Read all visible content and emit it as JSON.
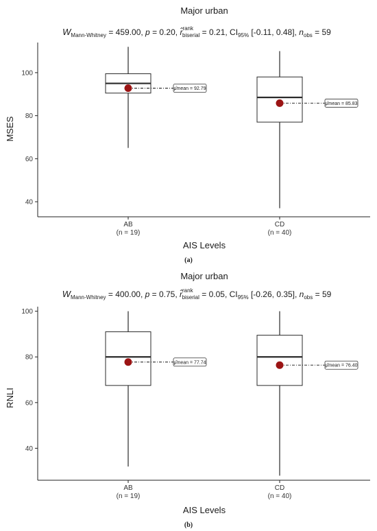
{
  "chart_data": [
    {
      "type": "box",
      "panel_label": "(a)",
      "title": "Major urban",
      "stats": {
        "w_label": "W",
        "w_sub": "Mann-Whitney",
        "w_val": " = 459.00, ",
        "p_label": "p",
        "p_val": " = 0.20, ",
        "r_label": "r̂",
        "r_sup": "rank",
        "r_sub": "biserial",
        "r_val": " = 0.21, CI",
        "ci_sub": "95%",
        "ci_val": " [-0.11, 0.48], ",
        "n_label": "n",
        "n_sub": "obs",
        "n_val": " = 59"
      },
      "xlabel": "AIS  Levels",
      "ylabel": "MSES",
      "ylim": [
        33,
        114
      ],
      "yticks": [
        "40",
        "60",
        "80",
        "100"
      ],
      "categories": [
        {
          "name": "AB",
          "n_label": "(n = 19)",
          "whisker_low": 65,
          "q1": 90.5,
          "median": 95,
          "q3": 99.5,
          "whisker_high": 112,
          "mean": 92.79,
          "mean_label": "μ̂mean = 92.79"
        },
        {
          "name": "CD",
          "n_label": "(n = 40)",
          "whisker_low": 37,
          "q1": 77,
          "median": 88.5,
          "q3": 98,
          "whisker_high": 110,
          "mean": 85.83,
          "mean_label": "μ̂mean = 85.83"
        }
      ]
    },
    {
      "type": "box",
      "panel_label": "(b)",
      "title": "Major urban",
      "stats": {
        "w_label": "W",
        "w_sub": "Mann-Whitney",
        "w_val": " = 400.00, ",
        "p_label": "p",
        "p_val": " = 0.75, ",
        "r_label": "r̂",
        "r_sup": "rank",
        "r_sub": "biserial",
        "r_val": " = 0.05, CI",
        "ci_sub": "95%",
        "ci_val": " [-0.26, 0.35], ",
        "n_label": "n",
        "n_sub": "obs",
        "n_val": " = 59"
      },
      "xlabel": "AIS  Levels",
      "ylabel": "RNLI",
      "ylim": [
        26,
        102
      ],
      "yticks": [
        "40",
        "60",
        "80",
        "100"
      ],
      "categories": [
        {
          "name": "AB",
          "n_label": "(n = 19)",
          "whisker_low": 32,
          "q1": 67.5,
          "median": 80,
          "q3": 91,
          "whisker_high": 100,
          "mean": 77.74,
          "mean_label": "μ̂mean = 77.74"
        },
        {
          "name": "CD",
          "n_label": "(n = 40)",
          "whisker_low": 28,
          "q1": 67.5,
          "median": 80,
          "q3": 89.5,
          "whisker_high": 100,
          "mean": 76.4,
          "mean_label": "μ̂mean = 76.40"
        }
      ]
    }
  ],
  "colors": {
    "mean_point": "#9b1414",
    "box_stroke": "#2a2a2a",
    "axis": "#222222"
  }
}
